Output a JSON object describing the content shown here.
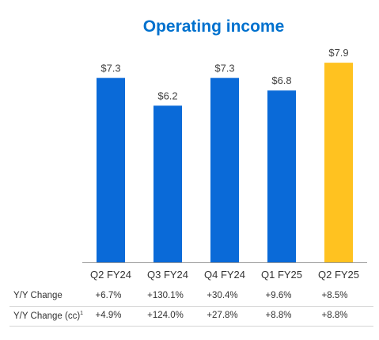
{
  "colors": {
    "title": "#0071ce",
    "bar": "#0a6ad8",
    "highlight": "#ffc220",
    "axis": "#999999"
  },
  "chart_data": {
    "type": "bar",
    "title": "Operating income",
    "categories": [
      "Q2 FY24",
      "Q3 FY24",
      "Q4 FY24",
      "Q1 FY25",
      "Q2 FY25"
    ],
    "values": [
      7.3,
      6.2,
      7.3,
      6.8,
      7.9
    ],
    "value_labels": [
      "$7.3",
      "$6.2",
      "$7.3",
      "$6.8",
      "$7.9"
    ],
    "highlight_index": 4,
    "ylim": [
      0,
      8.5
    ],
    "grid": false,
    "legend": "none"
  },
  "table": {
    "rows": [
      {
        "label": "Y/Y Change",
        "footnote": "",
        "values": [
          "+6.7%",
          "+130.1%",
          "+30.4%",
          "+9.6%",
          "+8.5%"
        ]
      },
      {
        "label": "Y/Y Change (cc)",
        "footnote": "1",
        "values": [
          "+4.9%",
          "+124.0%",
          "+27.8%",
          "+8.8%",
          "+8.8%"
        ]
      }
    ]
  }
}
